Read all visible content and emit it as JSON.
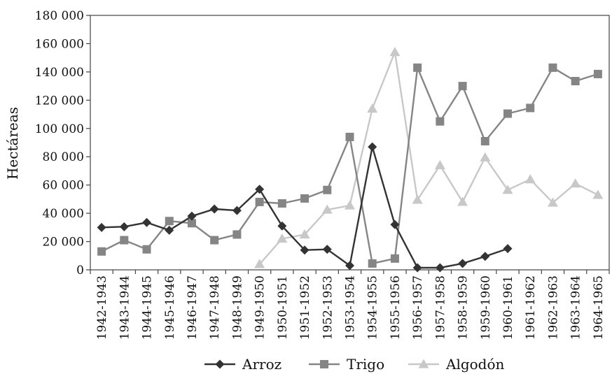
{
  "chart_data": {
    "type": "line",
    "title": "",
    "xlabel": "",
    "ylabel": "Hectáreas",
    "ylim": [
      0,
      180000
    ],
    "y_ticks": [
      0,
      20000,
      40000,
      60000,
      80000,
      100000,
      120000,
      140000,
      160000,
      180000
    ],
    "y_tick_labels": [
      "0",
      "20 000",
      "40 000",
      "60 000",
      "80 000",
      "100 000",
      "120 000",
      "140 000",
      "160 000",
      "180 000"
    ],
    "grid": false,
    "legend": "bottom",
    "categories": [
      "1942-1943",
      "1943-1944",
      "1944-1945",
      "1945-1946",
      "1946-1947",
      "1947-1948",
      "1948-1949",
      "1949-1950",
      "1950-1951",
      "1951-1952",
      "1952-1953",
      "1953-1954",
      "1954-1955",
      "1955-1956",
      "1956-1957",
      "1957-1958",
      "1958-1959",
      "1959-1960",
      "1960-1961",
      "1961-1962",
      "1962-1963",
      "1963-1964",
      "1964-1965"
    ],
    "series": [
      {
        "name": "Arroz",
        "marker": "diamond",
        "color": "#333333",
        "values": [
          30000,
          30500,
          33500,
          28000,
          38000,
          43000,
          42000,
          57000,
          31000,
          14000,
          14500,
          3000,
          87000,
          32000,
          1500,
          1500,
          4500,
          9500,
          15000,
          null,
          null,
          null,
          null
        ]
      },
      {
        "name": "Trigo",
        "marker": "square",
        "color": "#858585",
        "values": [
          13000,
          21000,
          14500,
          34500,
          33000,
          21000,
          25000,
          48000,
          47000,
          50500,
          56500,
          94000,
          4500,
          8000,
          143000,
          105000,
          130000,
          91000,
          110500,
          114500,
          143000,
          133500,
          138500
        ]
      },
      {
        "name": "Algodón",
        "marker": "triangle",
        "color": "#c8c8c8",
        "values": [
          null,
          null,
          null,
          null,
          null,
          null,
          null,
          4000,
          22000,
          25000,
          42500,
          45500,
          114000,
          154000,
          49500,
          74000,
          48000,
          79500,
          56500,
          64000,
          47500,
          61000,
          53000
        ]
      }
    ]
  }
}
